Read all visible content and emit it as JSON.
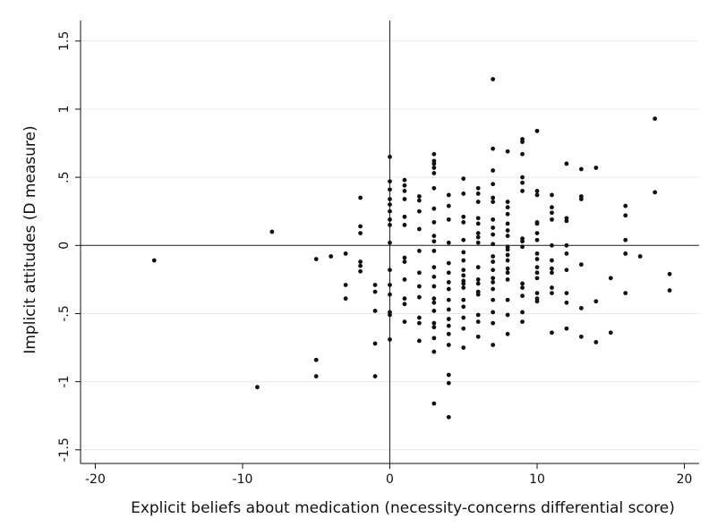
{
  "chart_data": {
    "type": "scatter",
    "title": "",
    "xlabel": "Explicit beliefs about medication (necessity-concerns differential score)",
    "ylabel": "Implicit attitudes (D measure)",
    "xlim": [
      -21,
      21
    ],
    "ylim": [
      -1.6,
      1.65
    ],
    "xticks": [
      {
        "value": -20,
        "label": "-20"
      },
      {
        "value": -10,
        "label": "-10"
      },
      {
        "value": 0,
        "label": "0"
      },
      {
        "value": 10,
        "label": "10"
      },
      {
        "value": 20,
        "label": "20"
      }
    ],
    "yticks": [
      {
        "value": -1.5,
        "label": "-1.5"
      },
      {
        "value": -1,
        "label": "-1"
      },
      {
        "value": -0.5,
        "label": "-.5"
      },
      {
        "value": 0,
        "label": "0"
      },
      {
        "value": 0.5,
        "label": ".5"
      },
      {
        "value": 1,
        "label": "1"
      },
      {
        "value": 1.5,
        "label": "1.5"
      }
    ],
    "grid": true,
    "reference_lines": {
      "x": 0,
      "y": 0
    },
    "point_color": "#111111",
    "points": [
      [
        -16,
        -0.11
      ],
      [
        -9,
        -1.04
      ],
      [
        -8,
        0.1
      ],
      [
        -5,
        -0.1
      ],
      [
        -5,
        -0.84
      ],
      [
        -5,
        -0.96
      ],
      [
        -4,
        -0.08
      ],
      [
        -3,
        -0.06
      ],
      [
        -3,
        -0.29
      ],
      [
        -3,
        -0.39
      ],
      [
        -2,
        0.35
      ],
      [
        -2,
        0.14
      ],
      [
        -2,
        0.09
      ],
      [
        -2,
        -0.12
      ],
      [
        -2,
        -0.15
      ],
      [
        -2,
        -0.19
      ],
      [
        -1,
        -0.29
      ],
      [
        -1,
        -0.34
      ],
      [
        -1,
        -0.48
      ],
      [
        -1,
        -0.72
      ],
      [
        -1,
        -0.96
      ],
      [
        0,
        0.65
      ],
      [
        0,
        0.47
      ],
      [
        0,
        0.41
      ],
      [
        0,
        0.34
      ],
      [
        0,
        0.3
      ],
      [
        0,
        0.25
      ],
      [
        0,
        0.19
      ],
      [
        0,
        0.15
      ],
      [
        0,
        0.02
      ],
      [
        0,
        -0.18
      ],
      [
        0,
        -0.29
      ],
      [
        0,
        -0.36
      ],
      [
        0,
        -0.49
      ],
      [
        0,
        -0.51
      ],
      [
        0,
        -0.69
      ],
      [
        1,
        0.48
      ],
      [
        1,
        0.44
      ],
      [
        1,
        0.4
      ],
      [
        1,
        0.34
      ],
      [
        1,
        0.21
      ],
      [
        1,
        0.15
      ],
      [
        1,
        -0.09
      ],
      [
        1,
        -0.12
      ],
      [
        1,
        -0.25
      ],
      [
        1,
        -0.39
      ],
      [
        1,
        -0.43
      ],
      [
        1,
        -0.56
      ],
      [
        2,
        0.36
      ],
      [
        2,
        0.33
      ],
      [
        2,
        0.25
      ],
      [
        2,
        0.12
      ],
      [
        2,
        -0.04
      ],
      [
        2,
        -0.2
      ],
      [
        2,
        -0.3
      ],
      [
        2,
        -0.38
      ],
      [
        2,
        -0.53
      ],
      [
        2,
        -0.57
      ],
      [
        2,
        -0.7
      ],
      [
        3,
        0.67
      ],
      [
        3,
        0.62
      ],
      [
        3,
        0.6
      ],
      [
        3,
        0.57
      ],
      [
        3,
        0.53
      ],
      [
        3,
        0.42
      ],
      [
        3,
        0.27
      ],
      [
        3,
        0.17
      ],
      [
        3,
        0.07
      ],
      [
        3,
        0.03
      ],
      [
        3,
        -0.04
      ],
      [
        3,
        -0.16
      ],
      [
        3,
        -0.23
      ],
      [
        3,
        -0.3
      ],
      [
        3,
        -0.39
      ],
      [
        3,
        -0.42
      ],
      [
        3,
        -0.48
      ],
      [
        3,
        -0.57
      ],
      [
        3,
        -0.6
      ],
      [
        3,
        -0.68
      ],
      [
        3,
        -0.78
      ],
      [
        3,
        -1.16
      ],
      [
        4,
        0.37
      ],
      [
        4,
        0.29
      ],
      [
        4,
        0.19
      ],
      [
        4,
        0.02
      ],
      [
        4,
        -0.13
      ],
      [
        4,
        -0.2
      ],
      [
        4,
        -0.27
      ],
      [
        4,
        -0.32
      ],
      [
        4,
        -0.4
      ],
      [
        4,
        -0.47
      ],
      [
        4,
        -0.54
      ],
      [
        4,
        -0.59
      ],
      [
        4,
        -0.65
      ],
      [
        4,
        -0.73
      ],
      [
        4,
        -0.95
      ],
      [
        4,
        -1.01
      ],
      [
        4,
        -1.26
      ],
      [
        5,
        0.49
      ],
      [
        5,
        0.38
      ],
      [
        5,
        0.21
      ],
      [
        5,
        0.17
      ],
      [
        5,
        0.04
      ],
      [
        5,
        -0.05
      ],
      [
        5,
        -0.11
      ],
      [
        5,
        -0.18
      ],
      [
        5,
        -0.22
      ],
      [
        5,
        -0.26
      ],
      [
        5,
        -0.28
      ],
      [
        5,
        -0.31
      ],
      [
        5,
        -0.4
      ],
      [
        5,
        -0.45
      ],
      [
        5,
        -0.53
      ],
      [
        5,
        -0.61
      ],
      [
        5,
        -0.75
      ],
      [
        6,
        0.42
      ],
      [
        6,
        0.38
      ],
      [
        6,
        0.32
      ],
      [
        6,
        0.2
      ],
      [
        6,
        0.16
      ],
      [
        6,
        0.09
      ],
      [
        6,
        0.06
      ],
      [
        6,
        0.02
      ],
      [
        6,
        -0.16
      ],
      [
        6,
        -0.25
      ],
      [
        6,
        -0.28
      ],
      [
        6,
        -0.34
      ],
      [
        6,
        -0.36
      ],
      [
        6,
        -0.51
      ],
      [
        6,
        -0.56
      ],
      [
        6,
        -0.67
      ],
      [
        7,
        1.22
      ],
      [
        7,
        0.71
      ],
      [
        7,
        0.55
      ],
      [
        7,
        0.45
      ],
      [
        7,
        0.35
      ],
      [
        7,
        0.32
      ],
      [
        7,
        0.19
      ],
      [
        7,
        0.13
      ],
      [
        7,
        0.08
      ],
      [
        7,
        0.01
      ],
      [
        7,
        -0.08
      ],
      [
        7,
        -0.12
      ],
      [
        7,
        -0.18
      ],
      [
        7,
        -0.24
      ],
      [
        7,
        -0.27
      ],
      [
        7,
        -0.32
      ],
      [
        7,
        -0.4
      ],
      [
        7,
        -0.49
      ],
      [
        7,
        -0.57
      ],
      [
        7,
        -0.73
      ],
      [
        8,
        0.69
      ],
      [
        8,
        0.32
      ],
      [
        8,
        0.28
      ],
      [
        8,
        0.23
      ],
      [
        8,
        0.16
      ],
      [
        8,
        0.11
      ],
      [
        8,
        0.07
      ],
      [
        8,
        -0.01
      ],
      [
        8,
        -0.03
      ],
      [
        8,
        -0.07
      ],
      [
        8,
        -0.11
      ],
      [
        8,
        -0.17
      ],
      [
        8,
        -0.2
      ],
      [
        8,
        -0.25
      ],
      [
        8,
        -0.4
      ],
      [
        8,
        -0.51
      ],
      [
        8,
        -0.65
      ],
      [
        9,
        0.78
      ],
      [
        9,
        0.76
      ],
      [
        9,
        0.67
      ],
      [
        9,
        0.5
      ],
      [
        9,
        0.46
      ],
      [
        9,
        0.4
      ],
      [
        9,
        0.05
      ],
      [
        9,
        0.03
      ],
      [
        9,
        -0.01
      ],
      [
        9,
        -0.28
      ],
      [
        9,
        -0.31
      ],
      [
        9,
        -0.37
      ],
      [
        9,
        -0.49
      ],
      [
        9,
        -0.56
      ],
      [
        10,
        0.84
      ],
      [
        10,
        0.4
      ],
      [
        10,
        0.37
      ],
      [
        10,
        0.17
      ],
      [
        10,
        0.16
      ],
      [
        10,
        0.09
      ],
      [
        10,
        0.04
      ],
      [
        10,
        -0.06
      ],
      [
        10,
        -0.1
      ],
      [
        10,
        -0.16
      ],
      [
        10,
        -0.2
      ],
      [
        10,
        -0.24
      ],
      [
        10,
        -0.35
      ],
      [
        10,
        -0.39
      ],
      [
        10,
        -0.41
      ],
      [
        11,
        0.37
      ],
      [
        11,
        0.28
      ],
      [
        11,
        0.24
      ],
      [
        11,
        0.19
      ],
      [
        11,
        0.0
      ],
      [
        11,
        -0.11
      ],
      [
        11,
        -0.17
      ],
      [
        11,
        -0.2
      ],
      [
        11,
        -0.31
      ],
      [
        11,
        -0.35
      ],
      [
        11,
        -0.64
      ],
      [
        12,
        0.6
      ],
      [
        12,
        0.2
      ],
      [
        12,
        0.18
      ],
      [
        12,
        0.0
      ],
      [
        12,
        -0.06
      ],
      [
        12,
        -0.18
      ],
      [
        12,
        -0.35
      ],
      [
        12,
        -0.42
      ],
      [
        12,
        -0.61
      ],
      [
        13,
        0.56
      ],
      [
        13,
        0.36
      ],
      [
        13,
        0.34
      ],
      [
        13,
        -0.14
      ],
      [
        13,
        -0.46
      ],
      [
        13,
        -0.67
      ],
      [
        14,
        0.57
      ],
      [
        14,
        -0.41
      ],
      [
        14,
        -0.71
      ],
      [
        15,
        -0.24
      ],
      [
        15,
        -0.64
      ],
      [
        16,
        0.29
      ],
      [
        16,
        0.22
      ],
      [
        16,
        0.04
      ],
      [
        16,
        -0.06
      ],
      [
        16,
        -0.35
      ],
      [
        17,
        -0.08
      ],
      [
        18,
        0.93
      ],
      [
        18,
        0.39
      ],
      [
        19,
        -0.21
      ],
      [
        19,
        -0.33
      ]
    ]
  }
}
